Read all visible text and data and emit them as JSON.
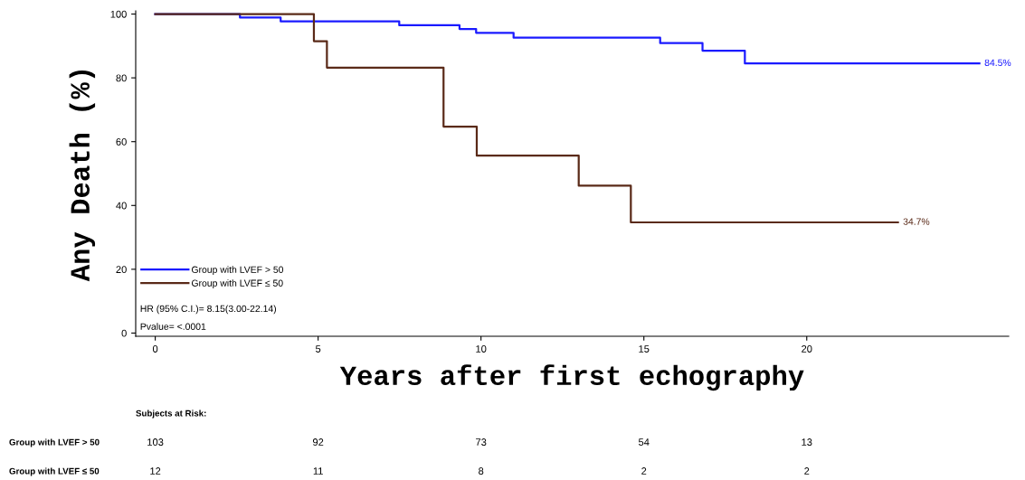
{
  "chart_data": {
    "type": "step",
    "xlabel": "Years after first echography",
    "ylabel": "Any Death (%)",
    "series": [
      {
        "name": "Group with LVEF > 50",
        "color": "#1a1aff",
        "x": [
          0,
          2.6,
          3.85,
          7.49,
          9.34,
          9.85,
          11.0,
          15.5,
          16.8,
          18.1,
          25.3
        ],
        "values": [
          100,
          98.9,
          97.7,
          96.5,
          95.3,
          94.1,
          92.6,
          90.9,
          88.5,
          84.5,
          84.5
        ]
      },
      {
        "name": "Group with LVEF ≤ 50",
        "color": "#5a2a18",
        "x": [
          0,
          4.87,
          5.27,
          8.85,
          9.87,
          13.0,
          14.6,
          22.8
        ],
        "values": [
          100,
          91.5,
          83.2,
          64.7,
          55.6,
          46.2,
          34.7,
          34.7
        ]
      }
    ],
    "xlim": [
      -0.6,
      26.2
    ],
    "ylim": [
      -1,
      101
    ],
    "xticks": [
      0,
      5,
      10,
      15,
      20
    ],
    "yticks": [
      0,
      20,
      40,
      60,
      80,
      100
    ],
    "legend": "bottom left",
    "grid": false,
    "marker": "none",
    "line_style": "solid",
    "annotations": [
      {
        "text": "84.5%",
        "x": 25.3,
        "y": 84.5
      },
      {
        "text": "34.7%",
        "x": 22.8,
        "y": 34.7
      },
      "HR (95% C.I.)= 8.15(3.00-22.14)",
      "Pvalue= <.0001",
      "Subjects at Risk:",
      "Group with LVEF > 50",
      "103",
      "92",
      "73",
      "54",
      "13",
      "Group with LVEF ≤ 50",
      "12",
      "11",
      "8",
      "2",
      "2"
    ]
  }
}
